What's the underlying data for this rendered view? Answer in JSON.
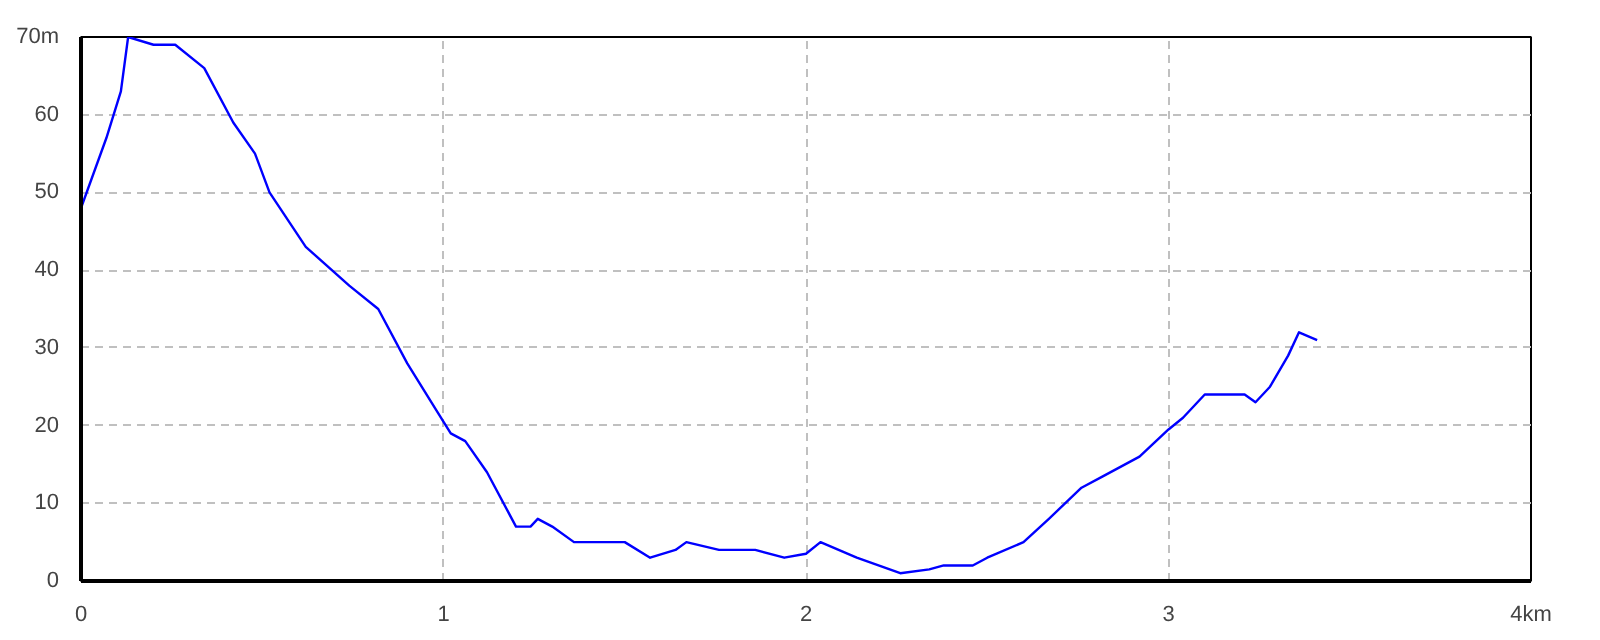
{
  "chart_data": {
    "type": "line",
    "x": [
      0,
      0.07,
      0.11,
      0.13,
      0.2,
      0.26,
      0.34,
      0.42,
      0.48,
      0.52,
      0.62,
      0.74,
      0.82,
      0.9,
      0.98,
      1.02,
      1.06,
      1.12,
      1.2,
      1.24,
      1.26,
      1.3,
      1.36,
      1.5,
      1.57,
      1.64,
      1.67,
      1.76,
      1.86,
      1.94,
      2.0,
      2.04,
      2.14,
      2.2,
      2.26,
      2.34,
      2.38,
      2.46,
      2.5,
      2.6,
      2.67,
      2.76,
      2.82,
      2.92,
      3.0,
      3.04,
      3.1,
      3.21,
      3.24,
      3.28,
      3.33,
      3.36,
      3.41
    ],
    "series": [
      {
        "color": "#0000ff",
        "values": [
          48,
          57,
          63,
          70,
          69,
          69,
          66,
          59,
          55,
          50,
          43,
          38,
          35,
          28,
          22,
          19,
          18,
          14,
          7,
          7,
          8,
          7,
          5,
          5,
          3,
          4,
          5,
          4,
          4,
          3,
          3.5,
          5,
          3,
          2,
          1,
          1.5,
          2,
          2,
          3,
          5,
          8,
          12,
          13.5,
          16,
          19.5,
          21,
          24,
          24,
          23,
          25,
          29,
          32,
          31
        ]
      }
    ],
    "xlim": [
      0,
      4
    ],
    "ylim": [
      0,
      70
    ],
    "xticks": [
      0,
      1,
      2,
      3,
      {
        "value": 4,
        "label": "4km"
      }
    ],
    "yticks": [
      0,
      10,
      20,
      30,
      40,
      50,
      60,
      {
        "value": 70,
        "label": "70m"
      }
    ],
    "grid": true,
    "line_style": "solid"
  }
}
